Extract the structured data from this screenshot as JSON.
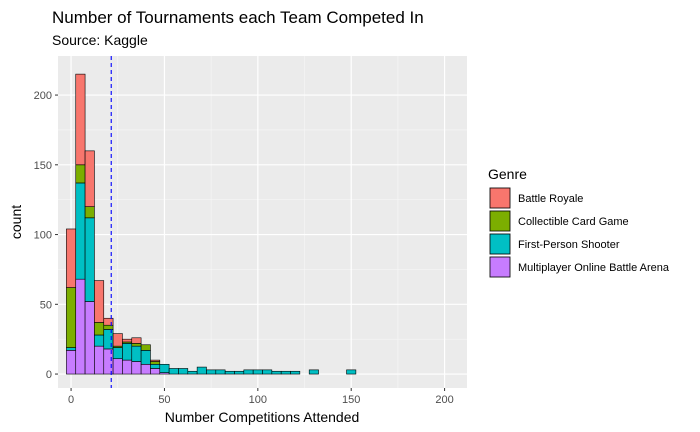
{
  "chart_data": {
    "type": "bar",
    "subtype": "stacked histogram",
    "title": "Number of Tournaments each Team Competed In",
    "subtitle": "Source: Kaggle",
    "xlabel": "Number Competitions Attended",
    "ylabel": "count",
    "xlim": [
      -7,
      212
    ],
    "ylim": [
      -10,
      228
    ],
    "x_ticks": [
      0,
      50,
      100,
      150,
      200
    ],
    "y_ticks": [
      0,
      50,
      100,
      150,
      200
    ],
    "bin_width": 5,
    "bin_centers": [
      0,
      5,
      10,
      15,
      20,
      25,
      30,
      35,
      40,
      45,
      50,
      55,
      60,
      65,
      70,
      75,
      80,
      85,
      90,
      95,
      100,
      105,
      110,
      115,
      120,
      125,
      130,
      135,
      140,
      145,
      150,
      155,
      160,
      165,
      170,
      175,
      180,
      185,
      190,
      195,
      200
    ],
    "grid": true,
    "mean_line": {
      "x": 21.5,
      "color": "#0000ff",
      "style": "dashed"
    },
    "legend": {
      "title": "Genre",
      "position": "right"
    },
    "series": [
      {
        "name": "Battle Royale",
        "color": "#F8766D",
        "values": [
          42,
          65,
          40,
          30,
          5,
          9,
          2,
          4,
          0,
          1,
          0,
          0,
          0,
          0,
          0,
          0,
          0,
          0,
          0,
          0,
          0,
          0,
          0,
          0,
          0,
          0,
          0,
          0,
          0,
          0,
          0,
          0,
          0,
          0,
          0,
          0,
          0,
          0,
          0,
          0,
          0
        ]
      },
      {
        "name": "Collectible Card Game",
        "color": "#7CAE00",
        "values": [
          43,
          13,
          8,
          9,
          3,
          1,
          1,
          2,
          4,
          2,
          0,
          0,
          0,
          0,
          0,
          0,
          0,
          0,
          0,
          0,
          0,
          0,
          0,
          0,
          0,
          0,
          0,
          0,
          0,
          0,
          0,
          0,
          0,
          0,
          0,
          0,
          0,
          0,
          0,
          0,
          0
        ]
      },
      {
        "name": "First-Person Shooter",
        "color": "#00BFC4",
        "values": [
          2,
          69,
          60,
          8,
          14,
          8,
          12,
          11,
          10,
          3,
          6,
          4,
          4,
          2,
          5,
          3,
          3,
          2,
          2,
          3,
          3,
          3,
          2,
          2,
          2,
          0,
          3,
          0,
          0,
          0,
          3,
          0,
          0,
          0,
          0,
          0,
          0,
          0,
          0,
          0,
          0
        ]
      },
      {
        "name": "Multiplayer Online Battle Arena",
        "color": "#C77CFF",
        "values": [
          17,
          68,
          52,
          20,
          18,
          11,
          10,
          9,
          7,
          4,
          1,
          0,
          0,
          0,
          0,
          0,
          0,
          0,
          0,
          0,
          0,
          0,
          0,
          0,
          0,
          0,
          0,
          0,
          0,
          0,
          0,
          0,
          0,
          0,
          0,
          0,
          0,
          0,
          0,
          0,
          0
        ]
      }
    ]
  }
}
